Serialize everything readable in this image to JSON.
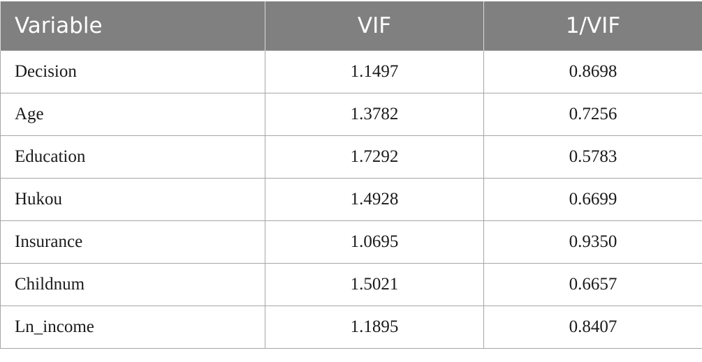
{
  "table": {
    "headers": [
      "Variable",
      "VIF",
      "1/VIF"
    ],
    "rows": [
      [
        "Decision",
        "1.1497",
        "0.8698"
      ],
      [
        "Age",
        "1.3782",
        "0.7256"
      ],
      [
        "Education",
        "1.7292",
        "0.5783"
      ],
      [
        "Hukou",
        "1.4928",
        "0.6699"
      ],
      [
        "Insurance",
        "1.0695",
        "0.9350"
      ],
      [
        "Childnum",
        "1.5021",
        "0.6657"
      ],
      [
        "Ln_income",
        "1.1895",
        "0.8407"
      ]
    ]
  },
  "colors": {
    "header_bg": "#808080",
    "header_text": "#ffffff",
    "border": "#a6a6a6"
  }
}
